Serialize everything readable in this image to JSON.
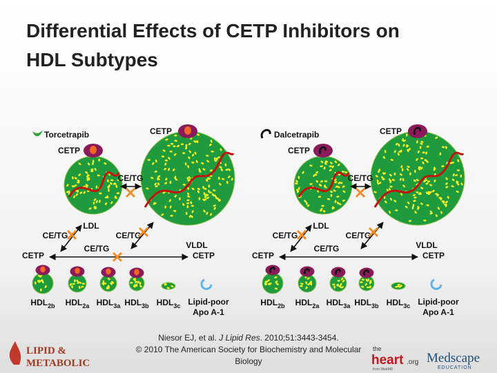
{
  "title": {
    "lines": [
      "Differential Effects of CETP Inhibitors on",
      "HDL Subtypes"
    ]
  },
  "panels": [
    {
      "drug": "Torcetrapib",
      "labels": {
        "cetp_top": "CETP",
        "cetp_ldl": "CETP",
        "ce_tg_between": "CE/TG",
        "ldl": "LDL",
        "ce_tg_ldl": "CE/TG",
        "ce_tg_vldl": "CE/TG",
        "vldl": "VLDL",
        "cetp_left": "CETP",
        "ce_tg_bottom": "CE/TG",
        "cetp_right": "CETP"
      },
      "hdl": [
        {
          "name": "HDL",
          "sub": "2b"
        },
        {
          "name": "HDL",
          "sub": "2a"
        },
        {
          "name": "HDL",
          "sub": "3a"
        },
        {
          "name": "HDL",
          "sub": "3b"
        },
        {
          "name": "HDL",
          "sub": "3c"
        }
      ],
      "apo": [
        "Lipid-poor",
        "Apo A-1"
      ]
    },
    {
      "drug": "Dalcetrapib",
      "labels": {
        "cetp_top": "CETP",
        "cetp_ldl": "CETP",
        "ce_tg_between": "CE/TG",
        "ldl": "LDL",
        "ce_tg_ldl": "CE/TG",
        "ce_tg_vldl": "CE/TG",
        "vldl": "VLDL",
        "cetp_left": "CETP",
        "ce_tg_bottom": "CE/TG",
        "cetp_right": "CETP"
      },
      "hdl": [
        {
          "name": "HDL",
          "sub": "2b"
        },
        {
          "name": "HDL",
          "sub": "2a"
        },
        {
          "name": "HDL",
          "sub": "3a"
        },
        {
          "name": "HDL",
          "sub": "3b"
        },
        {
          "name": "HDL",
          "sub": "3c"
        }
      ],
      "apo": [
        "Lipid-poor",
        "Apo A-1"
      ]
    }
  ],
  "citation": {
    "authors": "Niesor EJ, et al. ",
    "journal": "J Lipid Res",
    "details": ". 2010;51:3443-3454.",
    "copyright": [
      "© 2010 The American Society for Biochemistry and Molecular",
      "Biology"
    ]
  },
  "logos": {
    "lipid": [
      "LIPID &",
      "METABOLIC"
    ],
    "heart": [
      "the",
      "heart",
      ".org",
      "from WebMD"
    ],
    "medscape": [
      "Medscape",
      "EDUCATION"
    ]
  }
}
